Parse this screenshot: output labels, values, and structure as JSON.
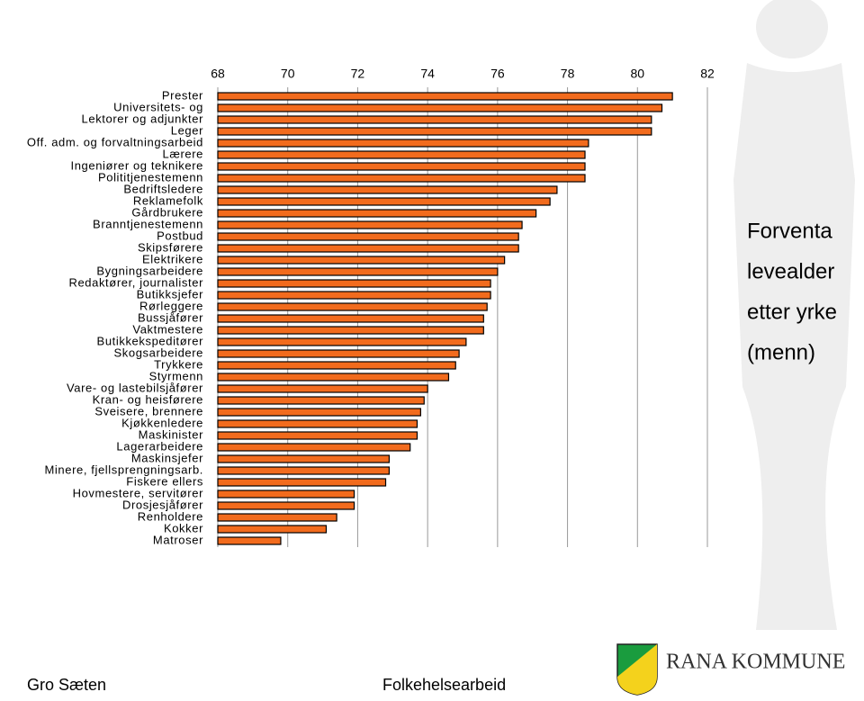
{
  "chart_data": {
    "type": "bar",
    "orientation": "horizontal",
    "title_lines": [
      "Forventa",
      "levealder",
      "etter yrke",
      "(menn)"
    ],
    "categories": [
      "Prester",
      "Universitets- og",
      "Lektorer og adjunkter",
      "Leger",
      "Off. adm. og forvaltningsarbeid",
      "Lærere",
      "Ingeniører og teknikere",
      "Polititjenestemenn",
      "Bedriftsledere",
      "Reklamefolk",
      "Gårdbrukere",
      "Branntjenestemenn",
      "Postbud",
      "Skipsførere",
      "Elektrikere",
      "Bygningsarbeidere",
      "Redaktører, journalister",
      "Butikksjefer",
      "Rørleggere",
      "Bussjåfører",
      "Vaktmestere",
      "Butikkekspeditører",
      "Skogsarbeidere",
      "Trykkere",
      "Styrmenn",
      "Vare- og lastebilsjåfører",
      "Kran- og heisførere",
      "Sveisere, brennere",
      "Kjøkkenledere",
      "Maskinister",
      "Lagerarbeidere",
      "Maskinsjefer",
      "Minere, fjellsprengningsarb.",
      "Fiskere ellers",
      "Hovmestere, servitører",
      "Drosjesjåfører",
      "Renholdere",
      "Kokker",
      "Matroser"
    ],
    "values": [
      81.0,
      80.7,
      80.4,
      80.4,
      78.6,
      78.5,
      78.5,
      78.5,
      77.7,
      77.5,
      77.1,
      76.7,
      76.6,
      76.6,
      76.2,
      76.0,
      75.8,
      75.8,
      75.7,
      75.6,
      75.6,
      75.1,
      74.9,
      74.8,
      74.6,
      74.0,
      73.9,
      73.8,
      73.7,
      73.7,
      73.5,
      72.9,
      72.9,
      72.8,
      71.9,
      71.9,
      71.4,
      71.1,
      69.8
    ],
    "color": "#f26b1d",
    "xlim": [
      68,
      82
    ],
    "xticks": [
      68,
      70,
      72,
      74,
      76,
      78,
      80,
      82
    ],
    "grid": true
  },
  "footer": {
    "author": "Gro Sæten",
    "topic": "Folkehelsearbeid",
    "logo_text": "RANA KOMMUNE"
  }
}
